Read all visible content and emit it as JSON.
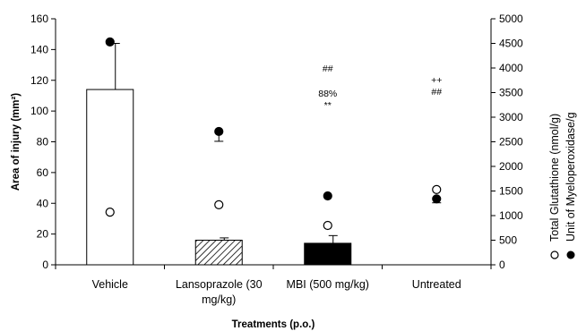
{
  "chart_data": {
    "type": "bar",
    "xlabel": "Treatments (p.o.)",
    "ylabel": "Area of injury (mm²)",
    "y2label_total_glutathione": "Total Glutathione (nmol/g)",
    "y2label_myeloperoxidase": "Unit of Myeloperoxidase/g",
    "ylim": [
      0,
      160
    ],
    "yticks": [
      0,
      20,
      40,
      60,
      80,
      100,
      120,
      140,
      160
    ],
    "y2lim": [
      0,
      5000
    ],
    "y2ticks": [
      0,
      500,
      1000,
      1500,
      2000,
      2500,
      3000,
      3500,
      4000,
      4500,
      5000
    ],
    "categories": [
      {
        "line1": "Vehicle",
        "line2": ""
      },
      {
        "line1": "Lansoprazole (30",
        "line2": "mg/kg)"
      },
      {
        "line1": "MBI (500 mg/kg)",
        "line2": ""
      },
      {
        "line1": "Untreated",
        "line2": ""
      }
    ],
    "bars": [
      {
        "value": 114,
        "error": 30,
        "fill": "white"
      },
      {
        "value": 16,
        "error": 1.5,
        "fill": "hatch"
      },
      {
        "value": 14,
        "error": 5,
        "fill": "black"
      },
      {
        "value": 0,
        "error": 0,
        "fill": "none"
      }
    ],
    "series": [
      {
        "name": "Total Glutathione (nmol/g)",
        "marker": "open-circle",
        "axis": "right",
        "values": [
          1070,
          1220,
          800,
          1530
        ]
      },
      {
        "name": "Unit of Myeloperoxidase/g",
        "marker": "filled-circle",
        "axis": "right",
        "values": [
          4530,
          2710,
          1400,
          1340
        ],
        "errors": [
          0,
          200,
          0,
          80
        ]
      }
    ],
    "annotations": [
      {
        "category": 2,
        "lines": [
          "##",
          "88%",
          "**"
        ]
      },
      {
        "category": 3,
        "lines": [
          "++",
          "##"
        ]
      }
    ],
    "grid": false
  }
}
